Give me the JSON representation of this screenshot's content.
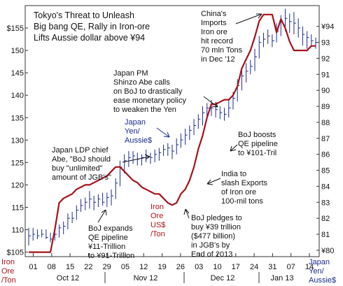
{
  "chart_data": {
    "type": "line",
    "title_lines": [
      "Tokyo's Threat to Unleash",
      "Big bang QE, Rally in Iron-ore",
      "Lifts Aussie dollar above ¥94"
    ],
    "left_axis": {
      "ylim": [
        104,
        160
      ],
      "ticks": [
        105,
        110,
        115,
        120,
        125,
        130,
        135,
        140,
        145,
        150,
        155
      ],
      "tick_labels": [
        "$105",
        "110",
        "115",
        "120",
        "125",
        "130",
        "135",
        "140",
        "145",
        "150",
        "$155"
      ],
      "label_lines": [
        "Iron",
        "Ore",
        "/Ton"
      ]
    },
    "right_axis": {
      "ylim": [
        79.6,
        95.3
      ],
      "ticks": [
        80,
        81,
        82,
        83,
        84,
        85,
        86,
        87,
        88,
        89,
        90,
        91,
        92,
        93,
        94
      ],
      "tick_labels": [
        "¥80",
        "81",
        "82",
        "83",
        "84",
        "85",
        "86",
        "87",
        "88",
        "89",
        "90",
        "91",
        "92",
        "93",
        "¥94"
      ],
      "label_lines": [
        "Japan",
        "Yen/",
        "Aussie$"
      ]
    },
    "x_axis": {
      "tick_labels": [
        "01",
        "08",
        "15",
        "22",
        "29",
        "05",
        "12",
        "19",
        "26",
        "03",
        "10",
        "17",
        "24",
        "31",
        "07",
        "14"
      ],
      "month_labels": [
        "Oct 12",
        "Nov 12",
        "Dec 12",
        "Jan 13"
      ]
    },
    "series": [
      {
        "name": "Iron Ore US$ /Ton",
        "color": "#a5121c",
        "axis": "left",
        "points": [
          [
            0,
            105
          ],
          [
            1,
            105
          ],
          [
            2,
            105
          ],
          [
            3,
            105
          ],
          [
            4,
            105
          ],
          [
            5,
            105
          ],
          [
            6,
            110
          ],
          [
            7,
            116
          ],
          [
            8,
            117
          ],
          [
            9,
            117.5
          ],
          [
            10,
            118
          ],
          [
            11,
            119
          ],
          [
            12,
            119.5
          ],
          [
            13,
            120
          ],
          [
            14,
            120
          ],
          [
            15,
            120.5
          ],
          [
            16,
            121
          ],
          [
            17,
            121.5
          ],
          [
            18,
            122
          ],
          [
            19,
            123
          ],
          [
            20,
            124
          ],
          [
            21,
            124
          ],
          [
            22,
            123
          ],
          [
            23,
            122
          ],
          [
            24,
            121
          ],
          [
            25,
            120.5
          ],
          [
            26,
            119.5
          ],
          [
            27,
            119
          ],
          [
            28,
            118.5
          ],
          [
            29,
            118
          ],
          [
            30,
            118
          ],
          [
            31,
            117
          ],
          [
            32,
            116
          ],
          [
            33,
            115.5
          ],
          [
            34,
            116
          ],
          [
            35,
            118
          ],
          [
            36,
            119
          ],
          [
            37,
            121
          ],
          [
            38,
            124
          ],
          [
            39,
            128
          ],
          [
            40,
            131
          ],
          [
            41,
            135
          ],
          [
            42,
            138
          ],
          [
            43,
            138
          ],
          [
            44,
            138.5
          ],
          [
            45,
            139
          ],
          [
            46,
            139
          ],
          [
            47,
            140
          ],
          [
            48,
            142
          ],
          [
            49,
            146
          ],
          [
            50,
            148
          ],
          [
            51,
            150
          ],
          [
            52,
            153
          ],
          [
            53,
            156.5
          ],
          [
            54,
            158
          ],
          [
            55,
            158
          ],
          [
            56,
            158
          ],
          [
            57,
            154
          ],
          [
            58,
            157
          ],
          [
            59,
            155
          ],
          [
            60,
            152
          ],
          [
            61,
            150
          ],
          [
            62,
            150
          ],
          [
            63,
            150
          ],
          [
            64,
            150
          ],
          [
            65,
            151
          ],
          [
            66,
            151
          ]
        ]
      },
      {
        "name": "Japan Yen/ Aussie$",
        "color": "#1a2b8c",
        "axis": "right",
        "bars": [
          [
            0,
            81.4,
            80.3,
            80.9
          ],
          [
            1,
            81.4,
            80.6,
            81.0
          ],
          [
            2,
            81.3,
            80.7,
            80.9
          ],
          [
            3,
            81.3,
            80.8,
            81.0
          ],
          [
            4,
            81.3,
            80.7,
            80.8
          ],
          [
            5,
            81.1,
            80.5,
            80.7
          ],
          [
            6,
            81.2,
            80.6,
            81.0
          ],
          [
            7,
            81.6,
            80.8,
            81.4
          ],
          [
            8,
            81.8,
            81.0,
            81.5
          ],
          [
            9,
            82.3,
            81.3,
            82.0
          ],
          [
            10,
            82.4,
            81.7,
            82.0
          ],
          [
            11,
            82.8,
            81.9,
            82.5
          ],
          [
            12,
            83.2,
            82.4,
            82.8
          ],
          [
            13,
            83.3,
            82.5,
            83.0
          ],
          [
            14,
            83.7,
            82.6,
            83.2
          ],
          [
            15,
            83.4,
            82.5,
            83.0
          ],
          [
            16,
            83.5,
            82.7,
            83.2
          ],
          [
            17,
            83.6,
            82.8,
            83.0
          ],
          [
            18,
            83.6,
            82.7,
            83.3
          ],
          [
            19,
            83.8,
            82.8,
            83.4
          ],
          [
            20,
            84.5,
            83.2,
            84.2
          ],
          [
            21,
            85.6,
            84.0,
            85.2
          ],
          [
            22,
            86.0,
            84.8,
            85.6
          ],
          [
            23,
            86.2,
            85.2,
            85.8
          ],
          [
            24,
            86.2,
            85.4,
            85.9
          ],
          [
            25,
            86.1,
            85.3,
            85.7
          ],
          [
            26,
            86.0,
            85.3,
            85.8
          ],
          [
            27,
            86.3,
            85.5,
            85.9
          ],
          [
            28,
            86.1,
            85.4,
            85.8
          ],
          [
            29,
            86.3,
            85.5,
            86.0
          ],
          [
            30,
            86.4,
            85.6,
            86.1
          ],
          [
            31,
            86.6,
            85.9,
            86.3
          ],
          [
            32,
            86.7,
            85.9,
            86.4
          ],
          [
            33,
            86.6,
            85.7,
            86.2
          ],
          [
            34,
            87.0,
            86.0,
            86.6
          ],
          [
            35,
            87.3,
            86.4,
            86.9
          ],
          [
            36,
            87.6,
            86.6,
            87.2
          ],
          [
            37,
            87.8,
            86.9,
            87.5
          ],
          [
            38,
            88.2,
            87.2,
            87.8
          ],
          [
            39,
            88.5,
            87.6,
            88.2
          ],
          [
            40,
            89.0,
            87.8,
            88.6
          ],
          [
            41,
            89.2,
            88.3,
            88.9
          ],
          [
            42,
            89.4,
            88.4,
            88.9
          ],
          [
            43,
            89.2,
            88.3,
            88.8
          ],
          [
            44,
            89.0,
            88.2,
            88.6
          ],
          [
            45,
            88.9,
            88.1,
            88.5
          ],
          [
            46,
            89.4,
            88.3,
            88.9
          ],
          [
            47,
            89.9,
            88.8,
            89.5
          ],
          [
            48,
            90.7,
            89.3,
            90.3
          ],
          [
            49,
            91.3,
            90.0,
            90.9
          ],
          [
            50,
            91.7,
            90.5,
            91.2
          ],
          [
            51,
            91.9,
            91.0,
            91.5
          ],
          [
            52,
            92.6,
            91.2,
            92.1
          ],
          [
            53,
            93.4,
            92.0,
            93.0
          ],
          [
            54,
            93.6,
            92.7,
            93.2
          ],
          [
            55,
            93.8,
            92.9,
            93.4
          ],
          [
            56,
            93.5,
            92.7,
            93.1
          ],
          [
            57,
            94.2,
            93.0,
            93.7
          ],
          [
            58,
            94.7,
            93.4,
            94.3
          ],
          [
            59,
            95.1,
            93.7,
            94.5
          ],
          [
            60,
            94.8,
            93.6,
            94.3
          ],
          [
            61,
            94.9,
            93.5,
            94.2
          ],
          [
            62,
            94.5,
            93.3,
            93.9
          ],
          [
            63,
            94.0,
            92.8,
            93.5
          ],
          [
            64,
            93.7,
            92.6,
            93.3
          ],
          [
            65,
            93.5,
            92.7,
            93.1
          ],
          [
            66,
            93.3,
            92.6,
            93.0
          ]
        ]
      }
    ],
    "annotations": [
      {
        "id": "china",
        "lines": [
          "China's",
          "Imports",
          "Iron ore",
          "hit record",
          "70 mln Tons",
          "in Dec '12"
        ]
      },
      {
        "id": "abe-pm",
        "lines": [
          "Japan PM",
          "Shinzo Abe calls",
          "on BoJ to drastically",
          "ease monetary policy",
          "to weaken the Yen"
        ]
      },
      {
        "id": "ldp",
        "lines": [
          "Japan LDP chief",
          "Abe, \"BoJ should",
          "buy \"unlimited\"",
          "amount of JGB's\""
        ]
      },
      {
        "id": "boj-boost",
        "lines": [
          "BoJ boosts",
          "QE pipeline",
          "to ¥101-Tril"
        ]
      },
      {
        "id": "india",
        "lines": [
          "India to",
          "slash Exports",
          "of Iron ore",
          "100-mil tons"
        ]
      },
      {
        "id": "boj-39",
        "lines": [
          "BoJ pledges to",
          "buy ¥39 trillion",
          "($477 billion)",
          "in JGB's by",
          "End of 2013"
        ]
      },
      {
        "id": "boj-11",
        "lines": [
          "BoJ expands",
          "QE pipeline",
          "¥11-Trillion",
          "to ¥91-Trillion"
        ]
      }
    ],
    "series_labels": {
      "yen": [
        "Japan",
        "Yen/",
        "Aussie$"
      ],
      "iron": [
        "Iron",
        "Ore",
        "US$",
        "/Ton"
      ]
    },
    "grid": false
  }
}
